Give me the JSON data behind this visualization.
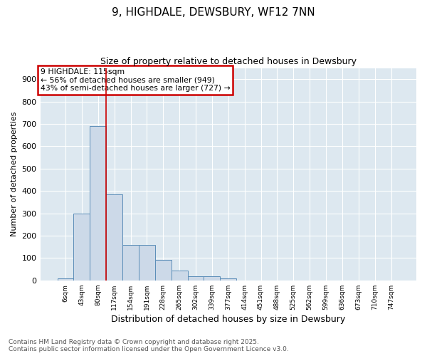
{
  "title": "9, HIGHDALE, DEWSBURY, WF12 7NN",
  "subtitle": "Size of property relative to detached houses in Dewsbury",
  "xlabel": "Distribution of detached houses by size in Dewsbury",
  "ylabel": "Number of detached properties",
  "bar_color": "#ccd9e8",
  "bar_edge_color": "#5b8db8",
  "background_color": "#dde8f0",
  "grid_color": "#ffffff",
  "fig_bg_color": "#ffffff",
  "categories": [
    "6sqm",
    "43sqm",
    "80sqm",
    "117sqm",
    "154sqm",
    "191sqm",
    "228sqm",
    "265sqm",
    "302sqm",
    "339sqm",
    "377sqm",
    "414sqm",
    "451sqm",
    "488sqm",
    "525sqm",
    "562sqm",
    "599sqm",
    "636sqm",
    "673sqm",
    "710sqm",
    "747sqm"
  ],
  "values": [
    10,
    300,
    690,
    385,
    160,
    160,
    92,
    43,
    18,
    18,
    10,
    0,
    0,
    0,
    0,
    0,
    0,
    0,
    0,
    0,
    0
  ],
  "ylim": [
    0,
    950
  ],
  "yticks": [
    0,
    100,
    200,
    300,
    400,
    500,
    600,
    700,
    800,
    900
  ],
  "vline_index": 2.5,
  "annotation_title": "9 HIGHDALE: 115sqm",
  "annotation_line1": "← 56% of detached houses are smaller (949)",
  "annotation_line2": "43% of semi-detached houses are larger (727) →",
  "annotation_box_color": "#cc0000",
  "vline_color": "#cc0000",
  "footer1": "Contains HM Land Registry data © Crown copyright and database right 2025.",
  "footer2": "Contains public sector information licensed under the Open Government Licence v3.0."
}
